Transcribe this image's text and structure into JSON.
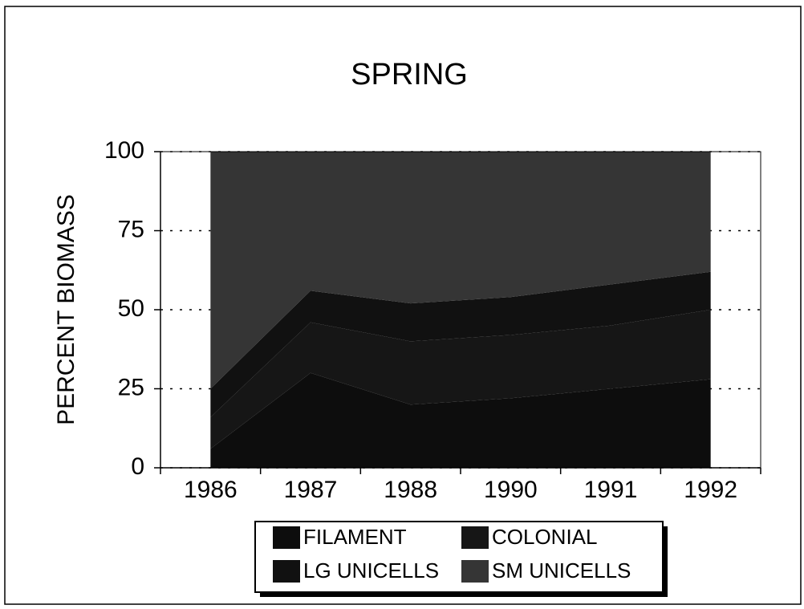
{
  "chart_data": {
    "type": "stacked_area",
    "title": "SPRING",
    "y_label": "PERCENT BIOMASS",
    "categories": [
      "1986",
      "1987",
      "1988",
      "1990",
      "1991",
      "1992"
    ],
    "series": [
      {
        "name": "FILAMENT",
        "color": "#0d0d0d",
        "values": [
          6,
          30,
          20,
          22,
          25,
          28
        ]
      },
      {
        "name": "COLONIAL",
        "color": "#161616",
        "values": [
          10,
          16,
          20,
          20,
          20,
          22
        ]
      },
      {
        "name": "LG UNICELLS",
        "color": "#111111",
        "values": [
          9,
          10,
          12,
          12,
          13,
          12
        ]
      },
      {
        "name": "SM UNICELLS",
        "color": "#353535",
        "values": [
          75,
          44,
          48,
          46,
          42,
          38
        ]
      }
    ],
    "ylim": [
      0,
      100
    ],
    "yticks": [
      0,
      25,
      50,
      75,
      100
    ],
    "grid": true
  }
}
